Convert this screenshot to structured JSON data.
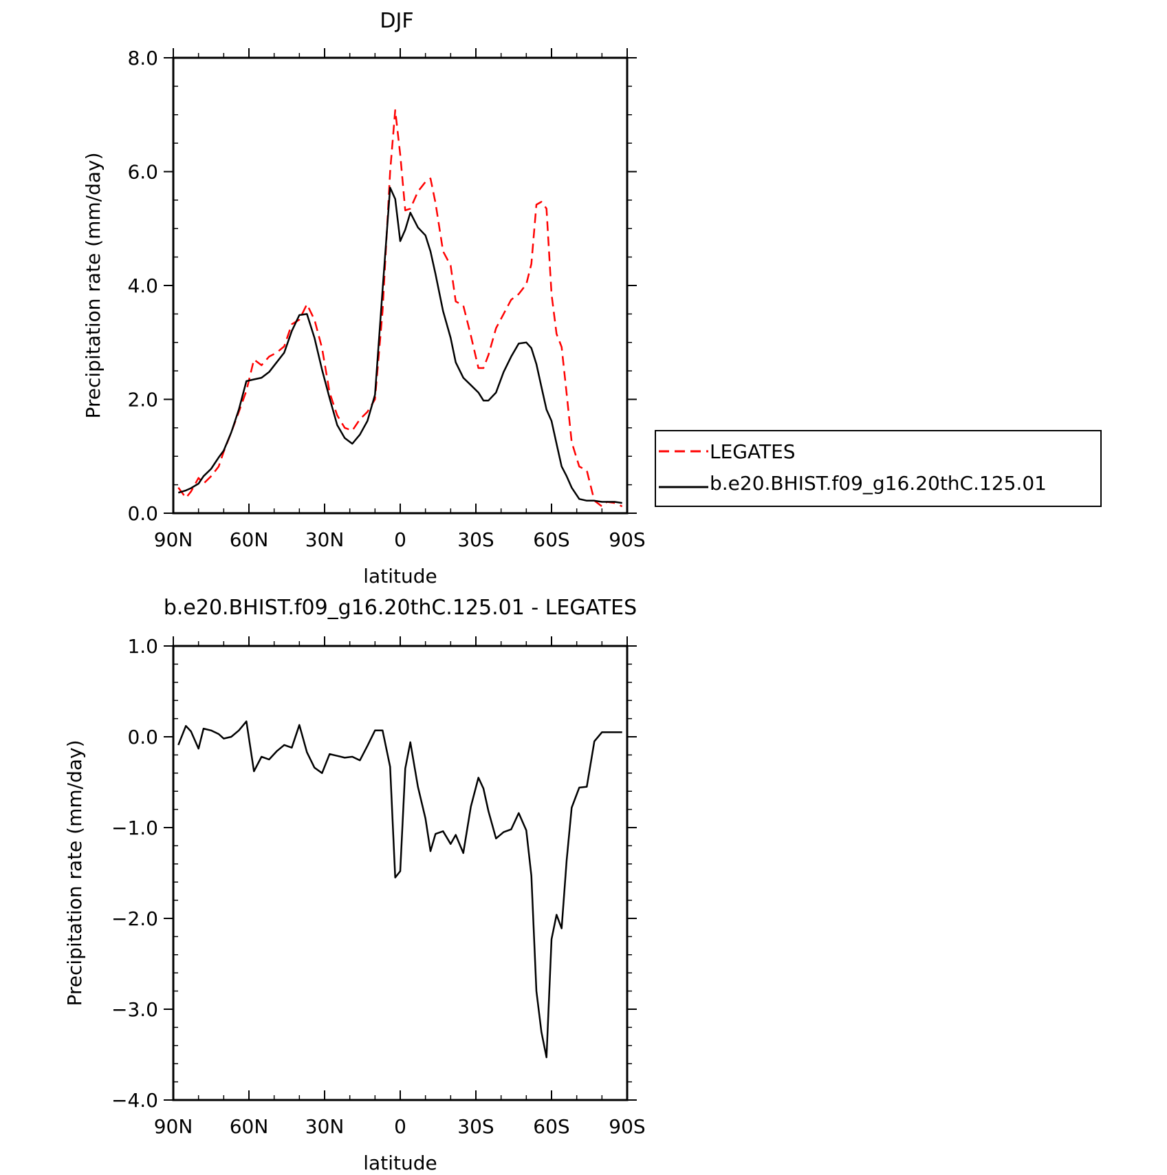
{
  "colors": {
    "legates": "#ff0000",
    "model": "#000000",
    "axis": "#000000"
  },
  "chart_data": [
    {
      "type": "line",
      "title": "DJF",
      "xlabel": "latitude",
      "ylabel": "Precipitation rate (mm/day)",
      "xlim": [
        90,
        -90
      ],
      "ylim": [
        0,
        8
      ],
      "xticks": [
        90,
        60,
        30,
        0,
        -30,
        -60,
        -90
      ],
      "xtick_labels": [
        "90N",
        "60N",
        "30N",
        "0",
        "30S",
        "60S",
        "90S"
      ],
      "yticks": [
        0,
        2,
        4,
        6,
        8
      ],
      "ytick_labels": [
        "0.0",
        "2.0",
        "4.0",
        "6.0",
        "8.0"
      ],
      "legend": {
        "placement": "right",
        "entries": [
          "LEGATES",
          "b.e20.BHIST.f09_g16.20thC.125.01"
        ]
      },
      "series": [
        {
          "name": "LEGATES",
          "style": "dashed",
          "color": "#ff0000",
          "x": [
            88,
            85,
            83,
            80,
            78,
            75,
            72,
            70,
            67,
            64,
            61,
            58,
            55,
            52,
            49,
            46,
            43,
            40,
            37,
            34,
            31,
            28,
            25,
            22,
            19,
            16,
            13,
            10,
            7,
            4,
            2,
            0,
            -2,
            -4,
            -7,
            -10,
            -12,
            -14,
            -17,
            -20,
            -22,
            -25,
            -28,
            -31,
            -33,
            -35,
            -38,
            -41,
            -44,
            -47,
            -50,
            -52,
            -54,
            -56,
            -58,
            -60,
            -62,
            -64,
            -66,
            -68,
            -71,
            -74,
            -77,
            -80,
            -82,
            -85,
            -88
          ],
          "y": [
            0.45,
            0.27,
            0.38,
            0.62,
            0.52,
            0.65,
            0.82,
            1.08,
            1.42,
            1.78,
            2.15,
            2.7,
            2.6,
            2.75,
            2.82,
            2.93,
            3.32,
            3.4,
            3.67,
            3.4,
            2.9,
            2.12,
            1.72,
            1.5,
            1.45,
            1.65,
            1.78,
            2.0,
            3.55,
            6.0,
            7.08,
            6.3,
            5.32,
            5.35,
            5.65,
            5.82,
            5.88,
            5.45,
            4.6,
            4.35,
            3.72,
            3.65,
            3.12,
            2.55,
            2.55,
            2.78,
            3.25,
            3.5,
            3.75,
            3.85,
            4.02,
            4.38,
            5.42,
            5.47,
            5.35,
            3.85,
            3.15,
            2.92,
            2.1,
            1.25,
            0.82,
            0.75,
            0.22,
            0.12,
            0.2,
            0.18,
            0.12
          ]
        },
        {
          "name": "b.e20.BHIST.f09_g16.20thC.125.01",
          "style": "solid",
          "color": "#000000",
          "x": [
            88,
            85,
            83,
            80,
            78,
            75,
            72,
            70,
            67,
            64,
            61,
            58,
            55,
            52,
            49,
            46,
            43,
            40,
            37,
            34,
            31,
            28,
            25,
            22,
            19,
            16,
            13,
            10,
            7,
            4,
            2,
            0,
            -2,
            -4,
            -7,
            -10,
            -12,
            -14,
            -17,
            -20,
            -22,
            -25,
            -28,
            -31,
            -33,
            -35,
            -38,
            -41,
            -44,
            -47,
            -50,
            -52,
            -54,
            -56,
            -58,
            -60,
            -62,
            -64,
            -66,
            -68,
            -71,
            -74,
            -77,
            -80,
            -82,
            -85,
            -88
          ],
          "y": [
            0.36,
            0.4,
            0.44,
            0.52,
            0.65,
            0.78,
            0.98,
            1.1,
            1.42,
            1.82,
            2.32,
            2.35,
            2.38,
            2.48,
            2.65,
            2.82,
            3.2,
            3.48,
            3.5,
            3.08,
            2.52,
            2.02,
            1.55,
            1.32,
            1.22,
            1.38,
            1.62,
            2.08,
            3.92,
            5.72,
            5.52,
            4.78,
            4.98,
            5.28,
            5.02,
            4.88,
            4.6,
            4.2,
            3.55,
            3.08,
            2.65,
            2.38,
            2.25,
            2.12,
            1.98,
            1.98,
            2.12,
            2.48,
            2.75,
            2.98,
            3.0,
            2.9,
            2.62,
            2.22,
            1.82,
            1.62,
            1.22,
            0.82,
            0.65,
            0.45,
            0.25,
            0.22,
            0.22,
            0.2,
            0.2,
            0.2,
            0.18
          ]
        }
      ]
    },
    {
      "type": "line",
      "title": "b.e20.BHIST.f09_g16.20thC.125.01 - LEGATES",
      "xlabel": "latitude",
      "ylabel": "Precipitation rate (mm/day)",
      "xlim": [
        90,
        -90
      ],
      "ylim": [
        -4,
        1
      ],
      "xticks": [
        90,
        60,
        30,
        0,
        -30,
        -60,
        -90
      ],
      "xtick_labels": [
        "90N",
        "60N",
        "30N",
        "0",
        "30S",
        "60S",
        "90S"
      ],
      "yticks": [
        -4,
        -3,
        -2,
        -1,
        0,
        1
      ],
      "ytick_labels": [
        "−4.0",
        "−3.0",
        "−2.0",
        "−1.0",
        "0.0",
        "1.0"
      ],
      "series": [
        {
          "style": "solid",
          "color": "#000000",
          "x": [
            88,
            85,
            83,
            80,
            78,
            75,
            72,
            70,
            67,
            64,
            61,
            58,
            55,
            52,
            49,
            46,
            43,
            40,
            37,
            34,
            31,
            28,
            25,
            22,
            19,
            16,
            13,
            10,
            7,
            4,
            2,
            0,
            -2,
            -4,
            -7,
            -10,
            -12,
            -14,
            -17,
            -20,
            -22,
            -25,
            -28,
            -31,
            -33,
            -35,
            -38,
            -41,
            -44,
            -47,
            -50,
            -52,
            -54,
            -56,
            -58,
            -60,
            -62,
            -64,
            -66,
            -68,
            -71,
            -74,
            -77,
            -80,
            -82,
            -85,
            -88
          ],
          "y": [
            -0.09,
            0.12,
            0.06,
            -0.13,
            0.09,
            0.07,
            0.03,
            -0.02,
            0.0,
            0.07,
            0.17,
            -0.38,
            -0.22,
            -0.25,
            -0.16,
            -0.09,
            -0.12,
            0.13,
            -0.17,
            -0.34,
            -0.4,
            -0.19,
            -0.21,
            -0.23,
            -0.22,
            -0.26,
            -0.1,
            0.07,
            0.07,
            -0.33,
            -1.55,
            -1.48,
            -0.35,
            -0.06,
            -0.55,
            -0.9,
            -1.26,
            -1.07,
            -1.04,
            -1.18,
            -1.08,
            -1.28,
            -0.77,
            -0.45,
            -0.57,
            -0.82,
            -1.12,
            -1.05,
            -1.02,
            -0.84,
            -1.03,
            -1.53,
            -2.8,
            -3.25,
            -3.53,
            -2.23,
            -1.96,
            -2.11,
            -1.36,
            -0.78,
            -0.56,
            -0.55,
            -0.05,
            0.05,
            0.05,
            0.05,
            0.05
          ]
        }
      ]
    }
  ]
}
